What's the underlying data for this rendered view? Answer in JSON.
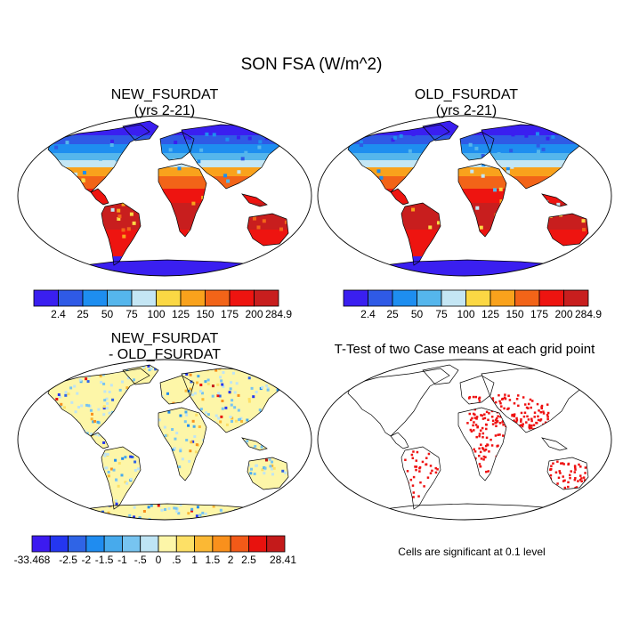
{
  "figure": {
    "title": "SON FSA (W/m^2)"
  },
  "panels": {
    "new": {
      "title_line1": "NEW_FSURDAT",
      "title_line2": "(yrs 2-21)"
    },
    "old": {
      "title_line1": "OLD_FSURDAT",
      "title_line2": "(yrs 2-21)"
    },
    "diff": {
      "title_line1": "NEW_FSURDAT",
      "title_line2": "- OLD_FSURDAT"
    },
    "ttest": {
      "title": "T-Test of two Case means at each grid point",
      "note": "Cells are significant at 0.1 level"
    }
  },
  "colorbars": {
    "abs": {
      "labels": [
        "2.4",
        "25",
        "50",
        "75",
        "100",
        "125",
        "150",
        "175",
        "200",
        "284.9"
      ],
      "colors": [
        "#3a1ff0",
        "#2f5ae6",
        "#1e8ef0",
        "#55b6ec",
        "#c4e6f4",
        "#fbd844",
        "#f9a21c",
        "#f26418",
        "#ee1410",
        "#c81e1e"
      ]
    },
    "diff": {
      "labels": [
        "-33.468",
        "-2.5",
        "-2",
        "-1.5",
        "-1",
        "-.5",
        "0",
        ".5",
        "1",
        "1.5",
        "2",
        "2.5",
        "28.41"
      ],
      "colors": [
        "#3c1af0",
        "#2436f0",
        "#2f64e6",
        "#1f8cf0",
        "#47aaec",
        "#77c4f0",
        "#bee4f4",
        "#fdf6a8",
        "#fde066",
        "#fbb834",
        "#f9901c",
        "#f25a18",
        "#e8120e",
        "#c41a1a"
      ]
    }
  },
  "colors": {
    "ocean": "#ffffff",
    "coast": "#000000",
    "significant": "#ee1111"
  }
}
